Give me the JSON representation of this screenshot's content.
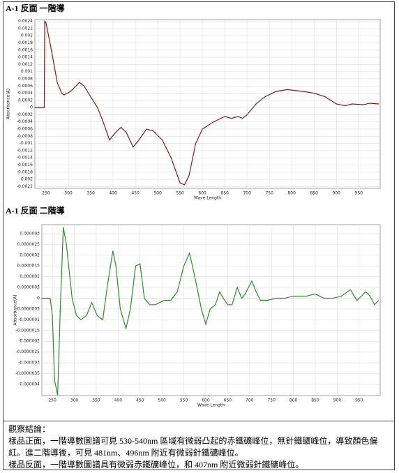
{
  "chart_data": [
    {
      "type": "line",
      "title": "A-1 反面 一階導",
      "xlabel": "Wave Length",
      "ylabel": "Absorbance(A)",
      "color": "#7a1a1a",
      "xlim": [
        225,
        998
      ],
      "ylim": [
        -0.00225,
        0.00245
      ],
      "xticks": [
        250,
        300,
        350,
        400,
        450,
        500,
        550,
        600,
        650,
        700,
        750,
        800,
        850,
        900,
        950
      ],
      "yticks": [
        0.0024,
        0.0022,
        0.002,
        0.0018,
        0.0016,
        0.0014,
        0.0012,
        0.001,
        0.0008,
        0.0006,
        0.0004,
        0.0002,
        0,
        -0.0002,
        -0.0004,
        -0.0006,
        -0.0008,
        -0.001,
        -0.0012,
        -0.0014,
        -0.0016,
        -0.0018,
        -0.002,
        -0.0022
      ],
      "x": [
        225,
        246,
        247,
        250,
        262,
        275,
        285,
        290,
        305,
        325,
        335,
        350,
        365,
        375,
        392,
        405,
        418,
        430,
        445,
        458,
        475,
        490,
        510,
        530,
        550,
        560,
        570,
        585,
        600,
        625,
        650,
        665,
        680,
        690,
        700,
        720,
        740,
        765,
        790,
        825,
        850,
        875,
        900,
        920,
        935,
        960,
        975,
        995
      ],
      "values": [
        0,
        0,
        0.0024,
        0.00235,
        0.0016,
        0.0007,
        0.0004,
        0.00035,
        0.00045,
        0.0007,
        0.0006,
        0.0003,
        0,
        -0.0003,
        -0.0009,
        -0.0007,
        -0.00055,
        -0.0007,
        -0.0011,
        -0.0009,
        -0.0006,
        -0.00065,
        -0.0009,
        -0.0014,
        -0.0021,
        -0.00215,
        -0.0019,
        -0.001,
        -0.0006,
        -0.0004,
        -0.00025,
        -0.0003,
        -0.00025,
        -0.0003,
        -0.0002,
        0.0001,
        0.0003,
        0.00045,
        0.0005,
        0.00045,
        0.0004,
        0.0003,
        0.0001,
        5e-05,
        0.0001,
        8e-05,
        0.00012,
        0.0001
      ]
    },
    {
      "type": "line",
      "title": "A-1 反面 二階導",
      "xlabel": "Wave Length",
      "ylabel": "Absorbance(A)",
      "color": "#2e8b2e",
      "xlim": [
        226,
        998
      ],
      "ylim": [
        -4.52e-06,
        3.42e-06
      ],
      "xticks": [
        250,
        300,
        350,
        400,
        450,
        500,
        550,
        600,
        650,
        700,
        750,
        800,
        850,
        900,
        950
      ],
      "yticks": [
        3e-06,
        2.5e-06,
        2e-06,
        1.5e-06,
        1e-06,
        {
          "value": 5e-07,
          "label": "0.0000005"
        },
        0,
        {
          "value": -5e-07,
          "label": "-0.0000005"
        },
        -1e-06,
        -1.5e-06,
        -2e-06,
        -2.5e-06,
        -3e-06,
        -3.5e-06,
        -4e-06
      ],
      "x": [
        226,
        245,
        250,
        255,
        262,
        268,
        275,
        282,
        295,
        305,
        315,
        328,
        340,
        352,
        365,
        375,
        388,
        395,
        405,
        418,
        428,
        440,
        450,
        460,
        472,
        485,
        495,
        505,
        520,
        535,
        550,
        563,
        575,
        590,
        600,
        610,
        622,
        632,
        640,
        650,
        660,
        672,
        682,
        690,
        705,
        715,
        725,
        740,
        760,
        780,
        800,
        830,
        850,
        870,
        890,
        910,
        930,
        945,
        955,
        965,
        975,
        985,
        995
      ],
      "values": [
        0,
        0,
        -8e-07,
        -3.8e-06,
        -4.5e-06,
        -5e-07,
        3.3e-06,
        2.5e-06,
        0,
        -8e-07,
        -1e-06,
        -8e-07,
        -2e-07,
        -8e-07,
        -1e-06,
        5e-07,
        2.2e-06,
        1.5e-06,
        -5e-07,
        -1.4e-06,
        -5e-07,
        1.5e-06,
        1.6e-06,
        0,
        -3e-07,
        -3e-07,
        -2e-07,
        -1e-07,
        -1e-07,
        3e-07,
        1.5e-06,
        2.1e-06,
        1e-06,
        -5e-07,
        -1.2e-06,
        -5e-07,
        -3e-07,
        3e-07,
        0,
        -3e-07,
        -3e-07,
        5e-07,
        0,
        2e-07,
        8e-07,
        3e-07,
        -1e-07,
        -1e-07,
        0,
        0,
        1e-07,
        1e-07,
        2e-07,
        0,
        0,
        1e-07,
        4e-07,
        -1e-07,
        1e-07,
        3e-07,
        1e-07,
        -3e-07,
        -1e-07
      ]
    }
  ],
  "notes": {
    "heading": "觀察結論：",
    "paragraphs": [
      "樣品正面，一階導數圖譜可見 530-540nm 區域有微弱凸起的赤鐵礦峰位，無針鐵礦峰位，導致顏色偏紅。進二階導後，可見 481nm、496nm 附近有微弱針鐵礦峰位。",
      "樣品反面，一階導數圖譜具有微弱赤鐵礦峰位，和 407nm 附近微弱針鐵礦峰位。"
    ]
  }
}
